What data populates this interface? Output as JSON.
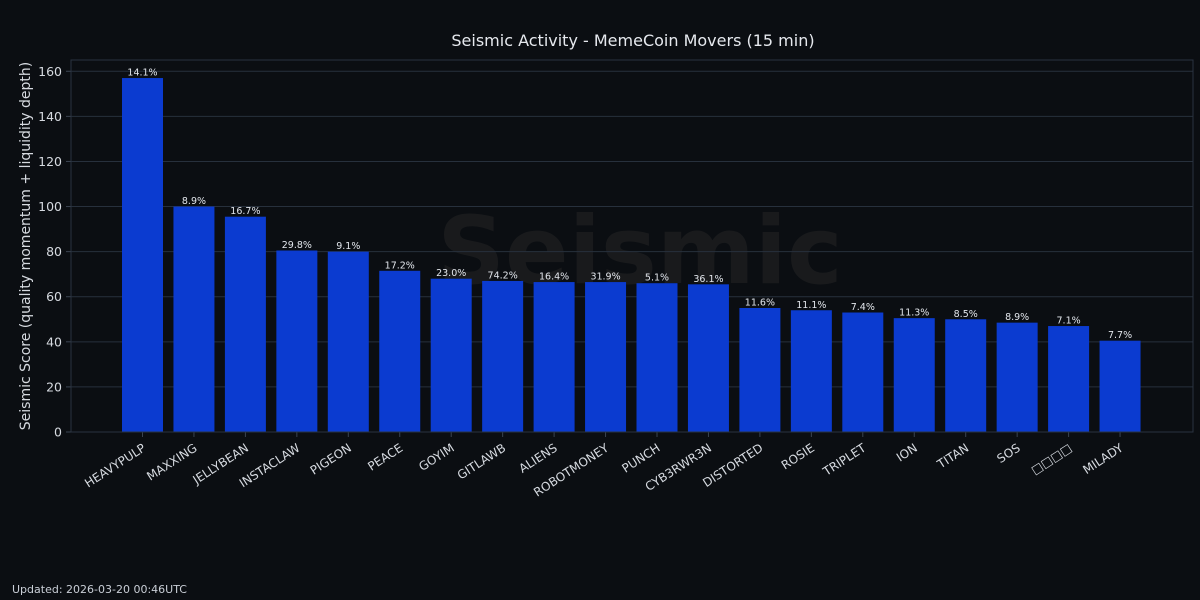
{
  "chart_data": {
    "type": "bar",
    "title": "Seismic Activity - MemeCoin Movers (15 min)",
    "xlabel": "",
    "ylabel": "Seismic Score (quality momentum + liquidity depth)",
    "ylim": [
      0,
      165
    ],
    "yticks": [
      0,
      20,
      40,
      60,
      80,
      100,
      120,
      140,
      160
    ],
    "grid": true,
    "categories": [
      "HEAVYPULP",
      "MAXXING",
      "JELLYBEAN",
      "INSTACLAW",
      "PIGEON",
      "PEACE",
      "GOYIM",
      "GITLAWB",
      "ALIENS",
      "ROBOTMONEY",
      "PUNCH",
      "CYB3RWR3N",
      "DISTORTED",
      "ROSIE",
      "TRIPLET",
      "ION",
      "TITAN",
      "SOS",
      "□□□□",
      "MILADY"
    ],
    "values": [
      157,
      100,
      95.5,
      80.5,
      80,
      71.5,
      68,
      67,
      66.5,
      66.5,
      66,
      65.5,
      55,
      54,
      53,
      50.5,
      50,
      48.5,
      47,
      40.5
    ],
    "labels": [
      "14.1%",
      "8.9%",
      "16.7%",
      "29.8%",
      "9.1%",
      "17.2%",
      "23.0%",
      "74.2%",
      "16.4%",
      "31.9%",
      "5.1%",
      "36.1%",
      "11.6%",
      "11.1%",
      "7.4%",
      "11.3%",
      "8.5%",
      "8.9%",
      "7.1%",
      "7.7%"
    ],
    "bar_color": "#0b3bd0",
    "watermark": "Seismic"
  },
  "footer": {
    "updated": "Updated: 2026-03-20 00:46UTC"
  }
}
